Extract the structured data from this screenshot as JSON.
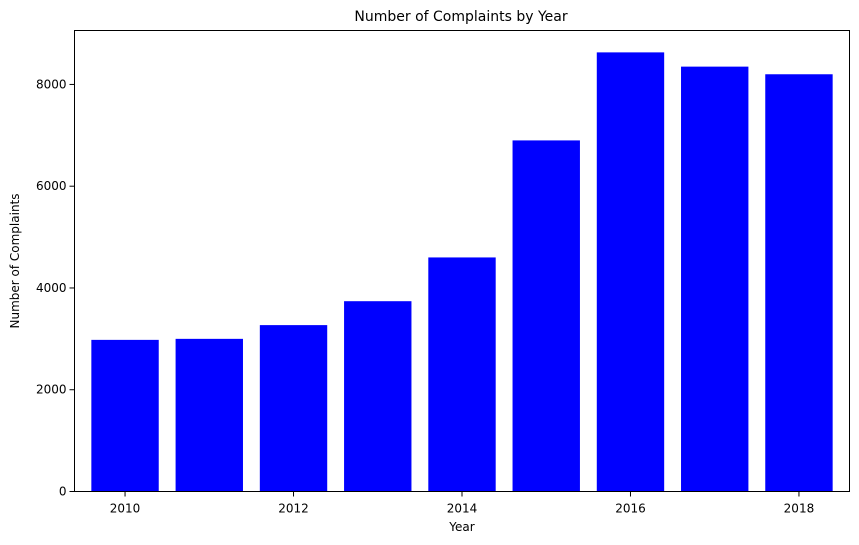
{
  "chart_data": {
    "type": "bar",
    "title": "Number of Complaints by Year",
    "xlabel": "Year",
    "ylabel": "Number of Complaints",
    "categories": [
      2010,
      2011,
      2012,
      2013,
      2014,
      2015,
      2016,
      2017,
      2018
    ],
    "values": [
      2980,
      3000,
      3270,
      3740,
      4600,
      6900,
      8630,
      8350,
      8200
    ],
    "xticks": [
      2010,
      2012,
      2014,
      2016,
      2018
    ],
    "yticks": [
      0,
      2000,
      4000,
      6000,
      8000
    ],
    "ylim": [
      0,
      9060
    ],
    "xlim": [
      2009.4,
      2018.6
    ],
    "bar_color": "#0000ff",
    "grid": false
  }
}
